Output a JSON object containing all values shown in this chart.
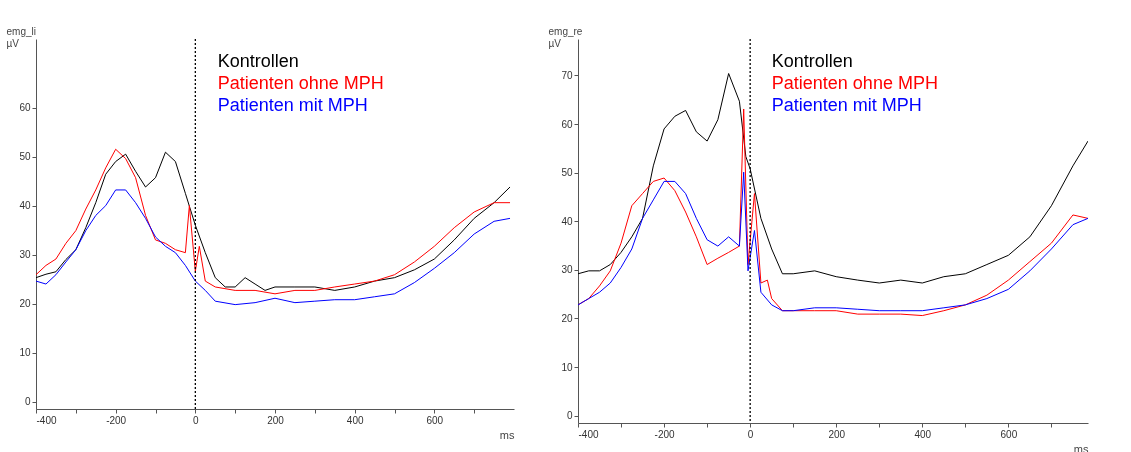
{
  "chart_data": [
    {
      "type": "line",
      "ylabel": "emg_li\nµV",
      "xlabel": "ms",
      "xlim": [
        -400,
        800
      ],
      "ylim": [
        -1.5,
        74
      ],
      "xticks": [
        -400,
        {
          "value": -300,
          "label": null
        },
        -200,
        {
          "value": -100,
          "label": null
        },
        0,
        {
          "value": 100,
          "label": null
        },
        200,
        {
          "value": 300,
          "label": null
        },
        400,
        {
          "value": 500,
          "label": null
        },
        600,
        {
          "value": 700,
          "label": null
        }
      ],
      "yticks": [
        0,
        10,
        20,
        30,
        40,
        50,
        60
      ],
      "ref_lines": [
        {
          "axis": "x",
          "value": 0,
          "color": "#000000",
          "line_style": "dotted"
        }
      ],
      "series": [
        {
          "name": "Kontrollen",
          "color": "#000000",
          "x": [
            -400,
            -375,
            -350,
            -325,
            -300,
            -275,
            -250,
            -225,
            -200,
            -175,
            -150,
            -125,
            -100,
            -75,
            -50,
            -25,
            0,
            25,
            50,
            75,
            100,
            125,
            150,
            175,
            200,
            250,
            300,
            350,
            400,
            450,
            500,
            550,
            600,
            650,
            700,
            750,
            790
          ],
          "values": [
            25.3,
            26,
            26.5,
            29,
            31,
            35.5,
            40.6,
            46.4,
            49,
            50.5,
            47,
            43.8,
            45.7,
            50.9,
            49,
            42.5,
            36,
            30.4,
            25.3,
            23.4,
            23.4,
            25.3,
            24,
            22.7,
            23.4,
            23.4,
            23.4,
            22.7,
            23.4,
            24.6,
            25.3,
            26.9,
            29.1,
            33,
            37.4,
            40.6,
            43.8
          ]
        },
        {
          "name": "Patienten ohne MPH",
          "color": "#ff0000",
          "x": [
            -400,
            -375,
            -350,
            -325,
            -300,
            -275,
            -250,
            -225,
            -200,
            -175,
            -150,
            -125,
            -100,
            -75,
            -50,
            -25,
            -15,
            0,
            10,
            25,
            50,
            100,
            150,
            200,
            250,
            300,
            350,
            400,
            450,
            500,
            550,
            600,
            650,
            700,
            750,
            790
          ],
          "values": [
            25.9,
            27.8,
            29.1,
            32.3,
            34.9,
            39.3,
            43.2,
            47.7,
            51.5,
            49.6,
            45.7,
            38,
            33,
            32.3,
            31,
            30.4,
            40,
            26.6,
            31.7,
            24.6,
            23.4,
            22.7,
            22.7,
            22,
            22.7,
            22.7,
            23.4,
            24,
            24.6,
            25.9,
            28.5,
            31.7,
            35.5,
            38.7,
            40.6,
            40.6
          ]
        },
        {
          "name": "Patienten mit MPH",
          "color": "#0000ff",
          "x": [
            -400,
            -375,
            -350,
            -325,
            -300,
            -275,
            -250,
            -225,
            -200,
            -175,
            -150,
            -125,
            -100,
            -75,
            -50,
            -25,
            0,
            25,
            50,
            100,
            150,
            200,
            250,
            300,
            350,
            400,
            450,
            500,
            550,
            600,
            650,
            700,
            750,
            790
          ],
          "values": [
            24.6,
            24,
            25.9,
            28.5,
            31,
            34.9,
            38,
            40,
            43.2,
            43.2,
            40.6,
            37.4,
            33.6,
            31.7,
            30.4,
            27.8,
            24.6,
            22.7,
            20.5,
            19.8,
            20.2,
            21.1,
            20.2,
            20.5,
            20.8,
            20.8,
            21.4,
            22,
            24.3,
            27.2,
            30.4,
            34.2,
            36.8,
            37.4
          ]
        }
      ]
    },
    {
      "type": "line",
      "ylabel": "emg_re\nµV",
      "xlabel": "ms",
      "xlim": [
        -400,
        785
      ],
      "ylim": [
        -1.5,
        77.5
      ],
      "xticks": [
        -400,
        {
          "value": -300,
          "label": null
        },
        -200,
        {
          "value": -100,
          "label": null
        },
        0,
        {
          "value": 100,
          "label": null
        },
        200,
        {
          "value": 300,
          "label": null
        },
        400,
        {
          "value": 500,
          "label": null
        },
        600,
        {
          "value": 700,
          "label": null
        }
      ],
      "yticks": [
        0,
        10,
        20,
        30,
        40,
        50,
        60,
        70
      ],
      "ref_lines": [
        {
          "axis": "x",
          "value": 0,
          "color": "#000000",
          "line_style": "dotted"
        }
      ],
      "series": [
        {
          "name": "Kontrollen",
          "color": "#000000",
          "x": [
            -400,
            -375,
            -350,
            -325,
            -300,
            -275,
            -250,
            -225,
            -200,
            -175,
            -150,
            -125,
            -100,
            -75,
            -50,
            -25,
            -10,
            0,
            25,
            50,
            75,
            100,
            150,
            200,
            250,
            300,
            350,
            400,
            450,
            500,
            550,
            600,
            650,
            700,
            750,
            785
          ],
          "values": [
            29.2,
            29.8,
            29.8,
            31.1,
            33.6,
            36.8,
            40.6,
            51.4,
            59,
            61.6,
            62.8,
            58.4,
            56.5,
            60.9,
            70.4,
            64.7,
            53.3,
            50.8,
            40.6,
            34.3,
            29.2,
            29.2,
            29.8,
            28.6,
            27.9,
            27.3,
            27.9,
            27.3,
            28.6,
            29.2,
            31.1,
            33,
            36.8,
            43.2,
            51.4,
            56.5
          ]
        },
        {
          "name": "Patienten ohne MPH",
          "color": "#ff0000",
          "x": [
            -400,
            -375,
            -350,
            -325,
            -300,
            -275,
            -250,
            -225,
            -200,
            -175,
            -150,
            -125,
            -100,
            -75,
            -50,
            -25,
            -15,
            -5,
            10,
            25,
            40,
            50,
            75,
            100,
            150,
            200,
            250,
            300,
            350,
            400,
            450,
            500,
            550,
            600,
            650,
            700,
            750,
            785
          ],
          "values": [
            22.8,
            24.1,
            26.7,
            29.8,
            35.5,
            43.2,
            45.7,
            48.2,
            48.9,
            46.3,
            41.9,
            36.8,
            31.1,
            32.4,
            33.6,
            34.9,
            63.1,
            31.1,
            45.7,
            27.3,
            27.9,
            24.1,
            21.6,
            21.6,
            21.6,
            21.6,
            20.9,
            20.9,
            20.9,
            20.6,
            21.6,
            22.8,
            24.8,
            27.9,
            31.7,
            35.5,
            41.3,
            40.6
          ]
        },
        {
          "name": "Patienten mit MPH",
          "color": "#0000ff",
          "x": [
            -400,
            -375,
            -350,
            -325,
            -300,
            -275,
            -250,
            -225,
            -200,
            -175,
            -150,
            -125,
            -100,
            -75,
            -50,
            -25,
            -15,
            -5,
            10,
            25,
            50,
            75,
            100,
            150,
            200,
            250,
            300,
            350,
            400,
            450,
            500,
            550,
            600,
            650,
            700,
            750,
            785
          ],
          "values": [
            22.8,
            24.1,
            25.4,
            27.3,
            30.5,
            34.3,
            40.6,
            44.4,
            48.2,
            48.2,
            45.7,
            40.6,
            36.2,
            34.9,
            36.8,
            34.9,
            50.1,
            29.8,
            38.1,
            25.4,
            22.8,
            21.6,
            21.6,
            22.2,
            22.2,
            21.9,
            21.6,
            21.6,
            21.6,
            22.2,
            22.8,
            24.1,
            26,
            29.8,
            34.3,
            39.3,
            40.6
          ]
        }
      ]
    }
  ]
}
